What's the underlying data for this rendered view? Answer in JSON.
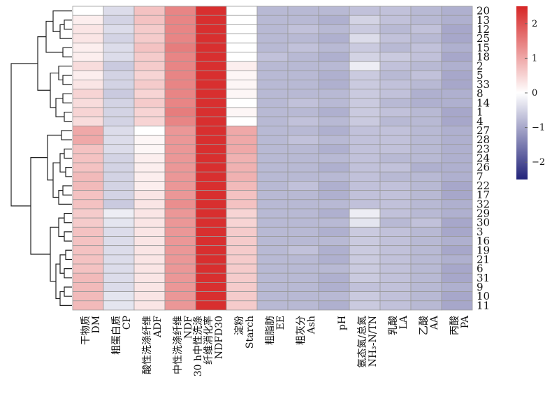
{
  "chart_data": {
    "type": "heatmap",
    "title": "",
    "xlabel": "",
    "ylabel": "",
    "columns": [
      {
        "zh": "干物质",
        "en": "DM"
      },
      {
        "zh": "粗蛋白质",
        "en": "CP"
      },
      {
        "zh": "酸性洗涤纤维",
        "en": "ADF"
      },
      {
        "zh": "中性洗涤纤维",
        "en": "NDF"
      },
      {
        "zh": "30 h中性洗涤",
        "zh2": "纤维消化率",
        "en": "NDFD30"
      },
      {
        "zh": "淀粉",
        "en": "Starch"
      },
      {
        "zh": "粗脂肪",
        "en": "EE"
      },
      {
        "zh": "粗灰分",
        "en": "Ash"
      },
      {
        "zh": "",
        "en": "pH"
      },
      {
        "zh": "氨态氮/总氮",
        "en": "NH₃-N/TN"
      },
      {
        "zh": "乳酸",
        "en": "LA"
      },
      {
        "zh": "乙酸",
        "en": "AA"
      },
      {
        "zh": "丙酸",
        "en": "PA"
      }
    ],
    "rows": [
      "20",
      "13",
      "12",
      "25",
      "15",
      "18",
      "2",
      "5",
      "33",
      "8",
      "14",
      "1",
      "4",
      "27",
      "28",
      "23",
      "24",
      "26",
      "7",
      "22",
      "17",
      "32",
      "29",
      "30",
      "3",
      "16",
      "19",
      "21",
      "6",
      "31",
      "9",
      "10",
      "11"
    ],
    "values": [
      [
        0.0,
        -0.4,
        0.7,
        1.4,
        2.4,
        0.0,
        -0.8,
        -0.8,
        -0.8,
        -0.7,
        -0.7,
        -0.8,
        -0.9
      ],
      [
        0.2,
        -0.5,
        0.7,
        1.4,
        2.4,
        0.0,
        -0.8,
        -0.8,
        -0.9,
        -0.5,
        -0.7,
        -0.8,
        -0.9
      ],
      [
        0.3,
        -0.4,
        0.6,
        1.4,
        2.4,
        0.0,
        -0.8,
        -0.7,
        -0.8,
        -0.6,
        -0.8,
        -0.7,
        -1.0
      ],
      [
        0.3,
        -0.5,
        0.6,
        1.4,
        2.4,
        0.0,
        -0.8,
        -0.8,
        -0.9,
        -0.4,
        -0.7,
        -0.8,
        -1.0
      ],
      [
        0.2,
        -0.4,
        0.7,
        1.5,
        2.4,
        0.0,
        -0.8,
        -0.7,
        -0.8,
        -0.6,
        -0.8,
        -0.7,
        -0.9
      ],
      [
        0.2,
        -0.4,
        0.6,
        1.4,
        2.4,
        0.0,
        -0.7,
        -0.8,
        -0.9,
        -0.5,
        -0.6,
        -0.7,
        -1.0
      ],
      [
        0.4,
        -0.6,
        0.6,
        1.4,
        2.4,
        0.2,
        -0.8,
        -0.8,
        -0.8,
        -0.2,
        -0.7,
        -0.8,
        -0.9
      ],
      [
        0.2,
        -0.5,
        0.5,
        1.4,
        2.4,
        0.1,
        -0.8,
        -0.8,
        -0.9,
        -0.6,
        -0.8,
        -0.7,
        -1.0
      ],
      [
        0.3,
        -0.5,
        0.6,
        1.4,
        2.4,
        0.1,
        -0.8,
        -0.8,
        -0.9,
        -0.6,
        -0.7,
        -0.8,
        -1.0
      ],
      [
        0.5,
        -0.6,
        0.5,
        1.4,
        2.4,
        0.1,
        -0.8,
        -0.8,
        -0.8,
        -0.6,
        -0.7,
        -0.9,
        -0.9
      ],
      [
        0.4,
        -0.5,
        0.6,
        1.4,
        2.4,
        0.0,
        -0.8,
        -0.7,
        -0.8,
        -0.6,
        -0.8,
        -0.9,
        -0.9
      ],
      [
        0.5,
        -0.5,
        0.5,
        1.5,
        2.4,
        0.1,
        -0.8,
        -0.8,
        -0.9,
        -0.6,
        -0.7,
        -0.8,
        -1.0
      ],
      [
        0.4,
        -0.5,
        0.5,
        1.4,
        2.4,
        0.0,
        -0.8,
        -0.7,
        -0.8,
        -0.6,
        -0.8,
        -0.8,
        -1.0
      ],
      [
        1.0,
        -0.4,
        0.0,
        1.2,
        2.4,
        1.0,
        -0.8,
        -0.8,
        -0.9,
        -0.7,
        -0.7,
        -0.8,
        -0.9
      ],
      [
        1.0,
        -0.4,
        0.1,
        1.2,
        2.4,
        1.0,
        -0.8,
        -0.7,
        -0.8,
        -0.7,
        -0.7,
        -0.8,
        -0.9
      ],
      [
        0.7,
        -0.4,
        0.1,
        1.2,
        2.4,
        1.0,
        -0.8,
        -0.8,
        -0.9,
        -0.7,
        -0.7,
        -0.8,
        -0.9
      ],
      [
        0.7,
        -0.5,
        0.2,
        1.2,
        2.4,
        0.9,
        -0.8,
        -0.8,
        -0.8,
        -0.7,
        -0.8,
        -0.8,
        -0.9
      ],
      [
        0.7,
        -0.5,
        0.2,
        1.2,
        2.4,
        0.9,
        -0.8,
        -0.8,
        -0.9,
        -0.7,
        -0.7,
        -0.9,
        -0.9
      ],
      [
        0.8,
        -0.5,
        0.2,
        1.2,
        2.4,
        0.9,
        -0.8,
        -0.8,
        -0.8,
        -0.7,
        -0.8,
        -0.8,
        -0.9
      ],
      [
        0.8,
        -0.5,
        0.2,
        1.2,
        2.4,
        0.8,
        -0.8,
        -0.7,
        -0.9,
        -0.7,
        -0.7,
        -0.8,
        -1.0
      ],
      [
        0.7,
        -0.5,
        0.3,
        1.2,
        2.4,
        0.7,
        -0.8,
        -0.8,
        -0.9,
        -0.7,
        -0.7,
        -0.8,
        -1.0
      ],
      [
        0.7,
        -0.6,
        0.3,
        1.3,
        2.4,
        0.7,
        -0.8,
        -0.8,
        -0.8,
        -0.7,
        -0.7,
        -0.8,
        -0.9
      ],
      [
        0.6,
        -0.2,
        0.3,
        1.2,
        2.4,
        0.5,
        -0.8,
        -0.8,
        -0.9,
        -0.2,
        -0.7,
        -0.8,
        -0.9
      ],
      [
        0.6,
        -0.3,
        0.3,
        1.2,
        2.4,
        0.5,
        -0.8,
        -0.8,
        -0.8,
        -0.3,
        -0.8,
        -0.7,
        -1.0
      ],
      [
        0.7,
        -0.4,
        0.3,
        1.2,
        2.4,
        0.6,
        -0.8,
        -0.8,
        -0.9,
        -0.6,
        -0.7,
        -0.8,
        -1.0
      ],
      [
        0.7,
        -0.4,
        0.3,
        1.2,
        2.4,
        0.6,
        -0.8,
        -0.8,
        -0.8,
        -0.6,
        -0.7,
        -0.8,
        -0.9
      ],
      [
        0.7,
        -0.4,
        0.3,
        1.2,
        2.4,
        0.6,
        -0.8,
        -0.7,
        -0.9,
        -0.6,
        -0.7,
        -0.8,
        -1.0
      ],
      [
        0.7,
        -0.4,
        0.3,
        1.2,
        2.4,
        0.6,
        -0.8,
        -0.8,
        -0.9,
        -0.6,
        -0.7,
        -0.8,
        -0.9
      ],
      [
        0.7,
        -0.4,
        0.3,
        1.2,
        2.4,
        0.6,
        -0.8,
        -0.8,
        -0.8,
        -0.6,
        -0.7,
        -0.8,
        -1.0
      ],
      [
        0.8,
        -0.4,
        0.3,
        1.2,
        2.4,
        0.6,
        -0.8,
        -0.8,
        -0.9,
        -0.6,
        -0.7,
        -0.8,
        -1.0
      ],
      [
        0.8,
        -0.4,
        0.3,
        1.2,
        2.4,
        0.6,
        -0.8,
        -0.8,
        -0.9,
        -0.7,
        -0.7,
        -0.8,
        -0.9
      ],
      [
        0.8,
        -0.3,
        0.3,
        1.2,
        2.4,
        0.6,
        -0.8,
        -0.8,
        -0.8,
        -0.6,
        -0.7,
        -0.8,
        -1.0
      ],
      [
        0.8,
        -0.3,
        0.3,
        1.2,
        2.4,
        0.6,
        -0.8,
        -0.8,
        -0.9,
        -0.6,
        -0.7,
        -0.8,
        -1.0
      ]
    ],
    "colorbar": {
      "min": -2.5,
      "max": 2.5,
      "ticks": [
        2,
        1,
        0,
        -1,
        -2
      ],
      "tick_labels": [
        "2",
        "1",
        "0",
        "−1",
        "−2"
      ],
      "colors": {
        "low": "#22237a",
        "mid": "#ffffff",
        "high": "#d62626"
      }
    },
    "grid": true,
    "grid_color": "#9a9a9a",
    "dendrogram": "left",
    "legend_placement": "right"
  }
}
